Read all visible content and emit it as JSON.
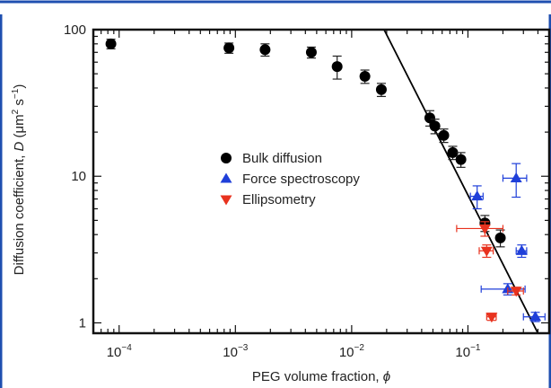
{
  "chart_data": {
    "type": "scatter",
    "x_scale": "log",
    "y_scale": "log",
    "xlim": [
      6e-05,
      0.5
    ],
    "ylim": [
      0.85,
      100
    ],
    "x_ticks": [
      {
        "value": 0.0001,
        "base": "10",
        "exp": "−4"
      },
      {
        "value": 0.001,
        "base": "10",
        "exp": "−3"
      },
      {
        "value": 0.01,
        "base": "10",
        "exp": "−2"
      },
      {
        "value": 0.1,
        "base": "10",
        "exp": "−1"
      }
    ],
    "y_ticks": [
      {
        "value": 1,
        "label": "1"
      },
      {
        "value": 10,
        "label": "10"
      },
      {
        "value": 100,
        "label": "100"
      }
    ],
    "xlabel": "PEG volume fraction, ",
    "xlabel_symbol": "ϕ",
    "ylabel_main": "Diffusion coefficient, ",
    "ylabel_symbol": "D",
    "ylabel_unit_open": " (μm",
    "ylabel_sup1": "2",
    "ylabel_mid": " s",
    "ylabel_sup2": "−1",
    "ylabel_close": ")",
    "legend_position": "center",
    "grid": false,
    "fit_line": {
      "x": [
        0.019,
        0.4
      ],
      "y": [
        100,
        0.85
      ],
      "color": "#000000"
    },
    "series": [
      {
        "name": "Bulk diffusion",
        "marker": "circle",
        "color": "#000000",
        "points": [
          {
            "x": 8.5e-05,
            "y": 80,
            "yerr": 6
          },
          {
            "x": 0.00088,
            "y": 75,
            "yerr": 6
          },
          {
            "x": 0.0018,
            "y": 73,
            "yerr": 7
          },
          {
            "x": 0.0045,
            "y": 70,
            "yerr": 6
          },
          {
            "x": 0.0075,
            "y": 56,
            "yerr": 10
          },
          {
            "x": 0.013,
            "y": 48,
            "yerr": 5
          },
          {
            "x": 0.018,
            "y": 39,
            "yerr": 4
          },
          {
            "x": 0.047,
            "y": 25,
            "yerr": 3
          },
          {
            "x": 0.052,
            "y": 22,
            "yerr": 2.5
          },
          {
            "x": 0.062,
            "y": 19,
            "yerr": 2
          },
          {
            "x": 0.074,
            "y": 14.5,
            "yerr": 1.5
          },
          {
            "x": 0.087,
            "y": 13,
            "yerr": 1.5
          },
          {
            "x": 0.14,
            "y": 4.8,
            "yerr": 0.6
          },
          {
            "x": 0.19,
            "y": 3.8,
            "yerr": 0.5
          }
        ]
      },
      {
        "name": "Force spectroscopy",
        "marker": "triangle-up",
        "color": "#1f3fd9",
        "points": [
          {
            "x": 0.12,
            "y": 7.3,
            "yerr": 1.3,
            "xerr": 0.015
          },
          {
            "x": 0.26,
            "y": 9.7,
            "yerr": 2.5,
            "xerr": 0.06
          },
          {
            "x": 0.29,
            "y": 3.1,
            "yerr": 0.3,
            "xerr": 0.03
          },
          {
            "x": 0.22,
            "y": 1.7,
            "yerr": 0.15,
            "xerr": 0.09
          },
          {
            "x": 0.38,
            "y": 1.1,
            "yerr": 0.08,
            "xerr": 0.08
          }
        ]
      },
      {
        "name": "Ellipsometry",
        "marker": "triangle-down",
        "color": "#e8321e",
        "points": [
          {
            "x": 0.14,
            "y": 4.4,
            "yerr": 0.5,
            "xerr": 0.06
          },
          {
            "x": 0.145,
            "y": 3.1,
            "yerr": 0.3,
            "xerr": 0.02
          },
          {
            "x": 0.16,
            "y": 1.1,
            "yerr": 0.06,
            "xerr": 0.015
          },
          {
            "x": 0.26,
            "y": 1.65,
            "yerr": 0.1,
            "xerr": 0.04
          }
        ]
      }
    ]
  }
}
